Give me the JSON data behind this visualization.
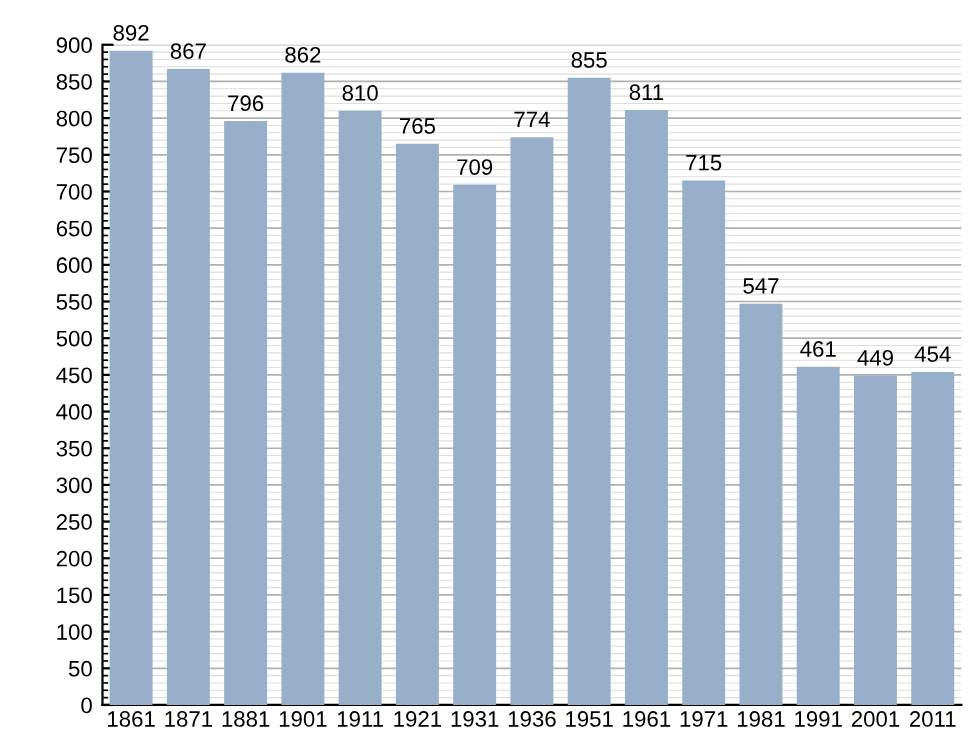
{
  "chart_data": {
    "type": "bar",
    "categories": [
      "1861",
      "1871",
      "1881",
      "1901",
      "1911",
      "1921",
      "1931",
      "1936",
      "1951",
      "1961",
      "1971",
      "1981",
      "1991",
      "2001",
      "2011"
    ],
    "values": [
      892,
      867,
      796,
      862,
      810,
      765,
      709,
      774,
      855,
      811,
      715,
      547,
      461,
      449,
      454
    ],
    "color": "#98afc9",
    "ylim": [
      0,
      900
    ],
    "yticks": [
      0,
      50,
      100,
      150,
      200,
      250,
      300,
      350,
      400,
      450,
      500,
      550,
      600,
      650,
      700,
      750,
      800,
      850,
      900
    ],
    "grid": "y",
    "data_labels": true
  }
}
